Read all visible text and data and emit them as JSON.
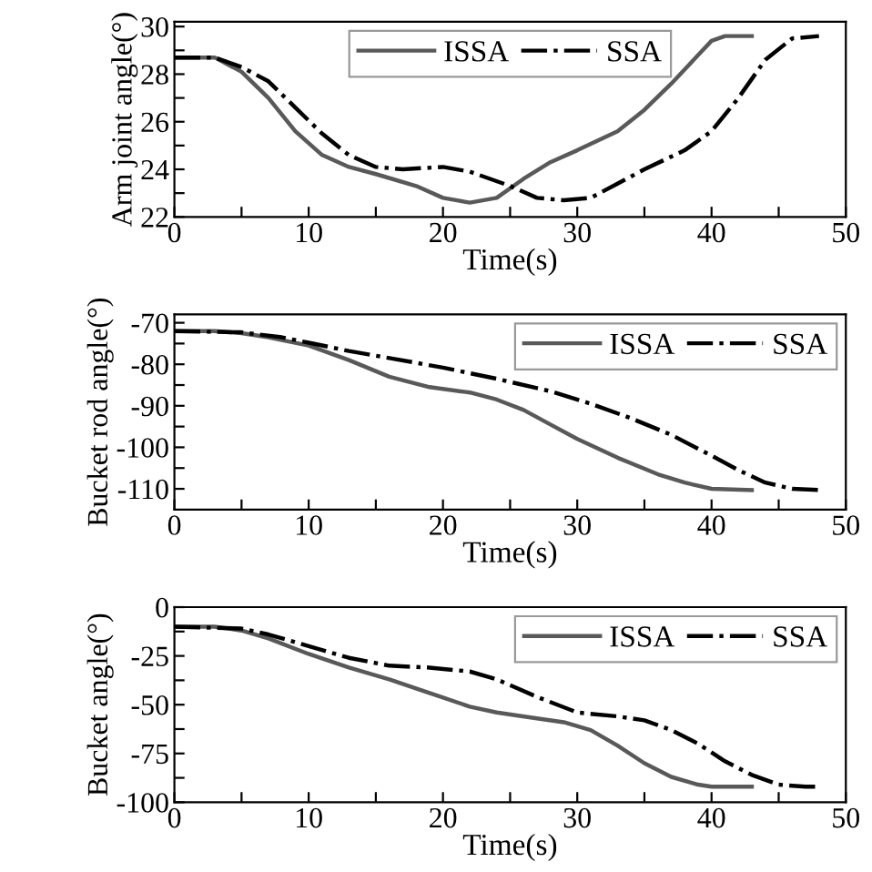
{
  "chart_data": [
    {
      "type": "line",
      "xlabel": "Time(s)",
      "ylabel": "Arm joint angle(°)",
      "xlim": [
        0,
        50
      ],
      "ylim": [
        22,
        30.2
      ],
      "legend": "top",
      "grid": false,
      "xticks": [
        0,
        {
          "value": 5,
          "label": null
        },
        10,
        {
          "value": 15,
          "label": null
        },
        20,
        {
          "value": 25,
          "label": null
        },
        30,
        {
          "value": 35,
          "label": null
        },
        40,
        {
          "value": 45,
          "label": null
        },
        50
      ],
      "yticks": [
        22,
        {
          "value": 23,
          "label": null
        },
        24,
        {
          "value": 25,
          "label": null
        },
        26,
        {
          "value": 27,
          "label": null
        },
        28,
        {
          "value": 29,
          "label": null
        },
        30
      ],
      "series": [
        {
          "name": "ISSA",
          "color": "#595959",
          "line_style": "solid",
          "x": [
            0,
            3,
            5,
            7,
            9,
            11,
            13,
            15,
            18,
            20,
            22,
            24,
            26,
            28,
            30,
            33,
            35,
            37,
            39,
            40,
            41,
            43
          ],
          "values": [
            28.7,
            28.7,
            28.1,
            27.0,
            25.6,
            24.6,
            24.1,
            23.8,
            23.3,
            22.8,
            22.6,
            22.8,
            23.6,
            24.3,
            24.8,
            25.6,
            26.5,
            27.6,
            28.8,
            29.4,
            29.6,
            29.6
          ]
        },
        {
          "name": "SSA",
          "color": "#000000",
          "line_style": "dashdot",
          "x": [
            0,
            3,
            5,
            7,
            9,
            11,
            13,
            15,
            17,
            20,
            22,
            25,
            27,
            29,
            31,
            33,
            35,
            38,
            40,
            42,
            44,
            46,
            48
          ],
          "values": [
            28.7,
            28.7,
            28.3,
            27.7,
            26.6,
            25.5,
            24.6,
            24.1,
            24.0,
            24.1,
            23.9,
            23.3,
            22.8,
            22.7,
            22.8,
            23.4,
            24.0,
            24.8,
            25.6,
            27.0,
            28.6,
            29.5,
            29.6
          ]
        }
      ]
    },
    {
      "type": "line",
      "xlabel": "Time(s)",
      "ylabel": "Bucket rod angle(°)",
      "xlim": [
        0,
        50
      ],
      "ylim": [
        -115,
        -68
      ],
      "legend": "top right",
      "grid": false,
      "xticks": [
        0,
        {
          "value": 5,
          "label": null
        },
        10,
        {
          "value": 15,
          "label": null
        },
        20,
        {
          "value": 25,
          "label": null
        },
        30,
        {
          "value": 35,
          "label": null
        },
        40,
        {
          "value": 45,
          "label": null
        },
        50
      ],
      "yticks": [
        -110,
        {
          "value": -105,
          "label": null
        },
        -100,
        {
          "value": -95,
          "label": null
        },
        -90,
        {
          "value": -85,
          "label": null
        },
        -80,
        {
          "value": -75,
          "label": null
        },
        -70
      ],
      "series": [
        {
          "name": "ISSA",
          "color": "#595959",
          "line_style": "solid",
          "x": [
            0,
            3,
            5,
            7,
            10,
            13,
            16,
            19,
            22,
            24,
            26,
            28,
            30,
            33,
            36,
            38,
            40,
            43
          ],
          "values": [
            -72,
            -72,
            -72.5,
            -73.5,
            -75.5,
            -79,
            -83,
            -85.5,
            -86.8,
            -88.5,
            -91,
            -94.5,
            -98,
            -102.5,
            -106.5,
            -108.5,
            -110,
            -110.3
          ]
        },
        {
          "name": "SSA",
          "color": "#000000",
          "line_style": "dashdot",
          "x": [
            0,
            5,
            8,
            10,
            13,
            16,
            20,
            24,
            28,
            31,
            34,
            37,
            40,
            42,
            44,
            46,
            48
          ],
          "values": [
            -72,
            -72.3,
            -73.5,
            -74.8,
            -76.8,
            -78.5,
            -80.8,
            -83.5,
            -86.5,
            -89.5,
            -93,
            -97,
            -102,
            -105.5,
            -108.5,
            -110,
            -110.3
          ]
        }
      ]
    },
    {
      "type": "line",
      "xlabel": "Time(s)",
      "ylabel": "Bucket angle(°)",
      "xlim": [
        0,
        50
      ],
      "ylim": [
        -100,
        0
      ],
      "legend": "top right",
      "grid": false,
      "xticks": [
        0,
        {
          "value": 5,
          "label": null
        },
        10,
        {
          "value": 15,
          "label": null
        },
        20,
        {
          "value": 25,
          "label": null
        },
        30,
        {
          "value": 35,
          "label": null
        },
        40,
        {
          "value": 45,
          "label": null
        },
        50
      ],
      "yticks": [
        -100,
        {
          "value": -87.5,
          "label": null
        },
        -75,
        {
          "value": -62.5,
          "label": null
        },
        -50,
        {
          "value": -37.5,
          "label": null
        },
        -25,
        {
          "value": -12.5,
          "label": null
        },
        0
      ],
      "series": [
        {
          "name": "ISSA",
          "color": "#595959",
          "line_style": "solid",
          "x": [
            0,
            3,
            5,
            7,
            10,
            13,
            16,
            19,
            22,
            24,
            27,
            29,
            31,
            33,
            35,
            37,
            39,
            40,
            43
          ],
          "values": [
            -10,
            -10,
            -12,
            -16,
            -24,
            -31,
            -37,
            -44,
            -51,
            -54,
            -57,
            -59,
            -63,
            -71,
            -80,
            -87,
            -91,
            -92,
            -92
          ]
        },
        {
          "name": "SSA",
          "color": "#000000",
          "line_style": "dashdot",
          "x": [
            0,
            5,
            7,
            10,
            13,
            16,
            19,
            22,
            24,
            27,
            30,
            33,
            35,
            37,
            39,
            41,
            43,
            45,
            47,
            48
          ],
          "values": [
            -10,
            -11,
            -14,
            -20,
            -26,
            -30,
            -31,
            -33,
            -37,
            -46,
            -54,
            -56,
            -58,
            -63,
            -70,
            -79,
            -86,
            -91,
            -92,
            -92
          ]
        }
      ]
    }
  ]
}
